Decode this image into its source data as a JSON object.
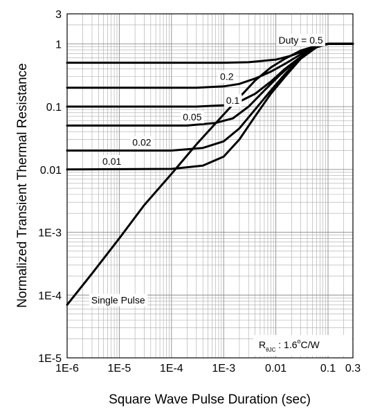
{
  "chart_data": {
    "type": "line",
    "title": "",
    "xlabel": "Square Wave Pulse Duration (sec)",
    "ylabel": "Normalized Transient Thermal Resistance",
    "xscale": "log",
    "yscale": "log",
    "xlim": [
      1e-06,
      0.3
    ],
    "ylim": [
      1e-05,
      3
    ],
    "grid": true,
    "x_ticks": [
      {
        "value": 1e-06,
        "label": "1E-6"
      },
      {
        "value": 1e-05,
        "label": "1E-5"
      },
      {
        "value": 0.0001,
        "label": "1E-4"
      },
      {
        "value": 0.001,
        "label": "1E-3"
      },
      {
        "value": 0.01,
        "label": "0.01"
      },
      {
        "value": 0.1,
        "label": "0.1"
      },
      {
        "value": 0.3,
        "label": "0.3"
      }
    ],
    "y_ticks": [
      {
        "value": 3,
        "label": "3"
      },
      {
        "value": 1,
        "label": "1"
      },
      {
        "value": 0.1,
        "label": "0.1"
      },
      {
        "value": 0.01,
        "label": "0.01"
      },
      {
        "value": 0.001,
        "label": "1E-3"
      },
      {
        "value": 0.0001,
        "label": "1E-4"
      },
      {
        "value": 1e-05,
        "label": "1E-5"
      }
    ],
    "series": [
      {
        "name": "Duty = 0.5",
        "label_x": 0.03,
        "label_y": 1.15,
        "x": [
          1e-06,
          0.001,
          0.003,
          0.01,
          0.02,
          0.04,
          0.07,
          0.1,
          0.3
        ],
        "y": [
          0.5,
          0.5,
          0.51,
          0.56,
          0.65,
          0.8,
          0.95,
          1.0,
          1.0
        ]
      },
      {
        "name": "0.2",
        "label_x": 0.00115,
        "label_y": 0.3,
        "x": [
          1e-06,
          0.0003,
          0.001,
          0.002,
          0.004,
          0.008,
          0.015,
          0.03,
          0.06,
          0.1,
          0.3
        ],
        "y": [
          0.2,
          0.2,
          0.21,
          0.23,
          0.28,
          0.36,
          0.48,
          0.68,
          0.9,
          1.0,
          1.0
        ]
      },
      {
        "name": "0.1",
        "label_x": 0.0015,
        "label_y": 0.125,
        "x": [
          1e-06,
          0.0003,
          0.001,
          0.002,
          0.004,
          0.008,
          0.015,
          0.03,
          0.06,
          0.1,
          0.3
        ],
        "y": [
          0.1,
          0.1,
          0.105,
          0.12,
          0.16,
          0.25,
          0.4,
          0.62,
          0.88,
          1.0,
          1.0
        ]
      },
      {
        "name": "0.05",
        "label_x": 0.00025,
        "label_y": 0.068,
        "x": [
          1e-06,
          0.0002,
          0.0007,
          0.0015,
          0.003,
          0.006,
          0.012,
          0.025,
          0.05,
          0.1,
          0.3
        ],
        "y": [
          0.05,
          0.05,
          0.055,
          0.065,
          0.1,
          0.18,
          0.32,
          0.55,
          0.85,
          1.0,
          1.0
        ]
      },
      {
        "name": "0.02",
        "label_x": 2.7e-05,
        "label_y": 0.027,
        "x": [
          1e-06,
          0.0001,
          0.0004,
          0.001,
          0.002,
          0.004,
          0.008,
          0.015,
          0.03,
          0.06,
          0.1,
          0.3
        ],
        "y": [
          0.02,
          0.02,
          0.022,
          0.028,
          0.045,
          0.09,
          0.18,
          0.33,
          0.6,
          0.9,
          1.0,
          1.0
        ]
      },
      {
        "name": "0.01",
        "label_x": 7.2e-06,
        "label_y": 0.0135,
        "x": [
          1e-06,
          0.0001,
          0.0004,
          0.001,
          0.002,
          0.004,
          0.008,
          0.015,
          0.03,
          0.06,
          0.1,
          0.3
        ],
        "y": [
          0.01,
          0.0102,
          0.0115,
          0.016,
          0.03,
          0.07,
          0.16,
          0.3,
          0.58,
          0.88,
          1.0,
          1.0
        ]
      },
      {
        "name": "Single Pulse",
        "label_x": 9.5e-06,
        "label_y": 8.3e-05,
        "x": [
          1e-06,
          3e-06,
          1e-05,
          3e-05,
          0.0001,
          0.0003,
          0.001,
          0.002,
          0.004,
          0.008,
          0.015,
          0.03,
          0.06,
          0.1,
          0.3
        ],
        "y": [
          7e-05,
          0.00022,
          0.0008,
          0.0027,
          0.0085,
          0.025,
          0.075,
          0.14,
          0.26,
          0.42,
          0.58,
          0.78,
          0.93,
          1.0,
          1.0
        ]
      }
    ],
    "annotation": {
      "symbol": "R",
      "subscript": "θJC",
      "text": " : 1.6",
      "superscript": "o",
      "unit": "C/W"
    }
  }
}
